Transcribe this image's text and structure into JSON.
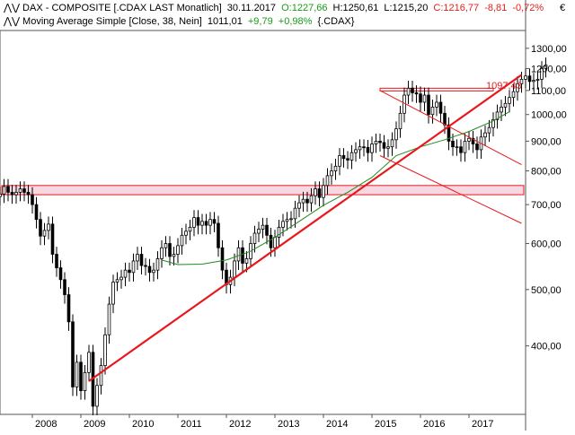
{
  "header": {
    "icon_name": "chart-toggle-icon",
    "title": "DAX - COMPOSITE [.CDAX LAST Monatlich]",
    "date": "30.11.2017",
    "open": "O:1227,66",
    "high": "H:1250,61",
    "low": "L:1215,20",
    "close": "C:1216,77",
    "change": "-8,81",
    "change_pct": "-0,72%",
    "ma_label": "Moving Average Simple [Close, 38, Nein]",
    "ma_value": "1011,01",
    "ma_change": "+9,79",
    "ma_change_pct": "+0,98%",
    "ma_symbol": "{.CDAX}"
  },
  "currency_symbol": "€",
  "colors": {
    "up_candle": "#ffffff",
    "down_candle": "#000000",
    "moving_average": "#1f8a1f",
    "trendline": "#e8171b",
    "resistance_zone": "#f6d8e2",
    "positive": "#1a9a1a",
    "negative": "#e0201c"
  },
  "chart_data": {
    "type": "candlestick",
    "title": "DAX - COMPOSITE [.CDAX LAST Monatlich]",
    "frequency": "monthly",
    "y_scale": "log",
    "ylim": [
      300,
      1400
    ],
    "y_ticks": [
      "1300,00",
      "1200,00",
      "1100,00",
      "1000,00",
      "900,00",
      "800,00",
      "700,00",
      "600,00",
      "500,00",
      "400,00"
    ],
    "x_tick_labels": [
      "2008",
      "2009",
      "2010",
      "2011",
      "2012",
      "2013",
      "2014",
      "2015",
      "2016",
      "2017"
    ],
    "x_range": [
      "2007-05",
      "2018-03"
    ],
    "last_price_label": "1097,43",
    "series": [
      {
        "name": "DAX - COMPOSITE",
        "type": "candlestick",
        "start": "2007-05",
        "close": [
          730,
          752,
          735,
          728,
          735,
          745,
          735,
          728,
          700,
          660,
          618,
          632,
          648,
          575,
          545,
          520,
          490,
          440,
          340,
          375,
          335,
          360,
          390,
          315,
          342,
          370,
          418,
          472,
          515,
          520,
          525,
          540,
          535,
          560,
          575,
          550,
          548,
          535,
          540,
          565,
          590,
          600,
          570,
          575,
          595,
          620,
          630,
          640,
          665,
          645,
          655,
          645,
          660,
          650,
          590,
          540,
          510,
          525,
          560,
          590,
          555,
          565,
          600,
          625,
          635,
          645,
          620,
          590,
          615,
          640,
          655,
          660,
          662,
          690,
          705,
          715,
          705,
          725,
          745,
          720,
          755,
          785,
          800,
          815,
          850,
          840,
          835,
          860,
          870,
          880,
          878,
          860,
          890,
          900,
          895,
          875,
          880,
          905,
          945,
          1005,
          1080,
          1110,
          1090,
          1085,
          1050,
          1080,
          1000,
          1030,
          1050,
          1005,
          960,
          900,
          880,
          880,
          860,
          900,
          910,
          890,
          870,
          915,
          930,
          950,
          980,
          1010,
          1030,
          1045,
          1070,
          1095,
          1130,
          1150,
          1165,
          1140,
          1145,
          1150,
          1200,
          1217
        ]
      },
      {
        "name": "Moving Average Simple [Close, 38, Nein]",
        "type": "line",
        "points": [
          [
            "2010-09",
            562
          ],
          [
            "2011-01",
            552
          ],
          [
            "2011-07",
            553
          ],
          [
            "2012-01",
            562
          ],
          [
            "2012-07",
            582
          ],
          [
            "2013-01",
            615
          ],
          [
            "2013-07",
            655
          ],
          [
            "2014-01",
            698
          ],
          [
            "2014-07",
            735
          ],
          [
            "2015-01",
            780
          ],
          [
            "2015-07",
            850
          ],
          [
            "2016-01",
            880
          ],
          [
            "2016-07",
            905
          ],
          [
            "2017-01",
            935
          ],
          [
            "2017-07",
            975
          ],
          [
            "2017-11",
            1011.01
          ]
        ]
      },
      {
        "name": "Trendline",
        "type": "line",
        "points": [
          [
            "2009-03",
            348
          ],
          [
            "2018-02",
            1170
          ]
        ]
      },
      {
        "name": "Channel upper",
        "type": "line",
        "points": [
          [
            "2015-03",
            1100
          ],
          [
            "2018-02",
            820
          ]
        ]
      },
      {
        "name": "Channel lower",
        "type": "line",
        "points": [
          [
            "2015-03",
            850
          ],
          [
            "2018-02",
            650
          ]
        ]
      }
    ],
    "bands": [
      {
        "y": [
          728,
          755
        ]
      },
      {
        "y": [
          1098,
          1110
        ],
        "x": [
          "2015-03",
          "2017-07"
        ]
      }
    ]
  }
}
